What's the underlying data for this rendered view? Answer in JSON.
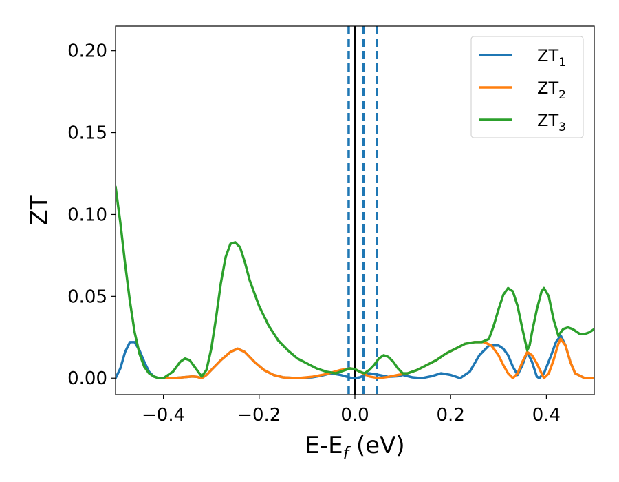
{
  "chart_data": {
    "type": "line",
    "xlabel": {
      "main": "E-E",
      "sub": "f",
      "unit": " (eV)"
    },
    "ylabel": "ZT",
    "xlim": [
      -0.5,
      0.5
    ],
    "ylim": [
      -0.01,
      0.215
    ],
    "x_ticks": [
      -0.4,
      -0.2,
      0.0,
      0.2,
      0.4
    ],
    "x_tick_labels": [
      "−0.4",
      "−0.2",
      "0.0",
      "0.2",
      "0.4"
    ],
    "y_ticks": [
      0.0,
      0.05,
      0.1,
      0.15,
      0.2
    ],
    "y_tick_labels": [
      "0.00",
      "0.05",
      "0.10",
      "0.15",
      "0.20"
    ],
    "legend_position": "top-right",
    "vertical_lines": [
      {
        "x": -0.013,
        "style": "dashed",
        "color": "#1f77b4"
      },
      {
        "x": 0.0,
        "style": "solid",
        "color": "#000000"
      },
      {
        "x": 0.018,
        "style": "dashed",
        "color": "#1f77b4"
      },
      {
        "x": 0.046,
        "style": "dashed",
        "color": "#1f77b4"
      }
    ],
    "series": [
      {
        "name": "ZT",
        "name_sub": "1",
        "color": "#1f77b4",
        "points": [
          [
            -0.5,
            0.0
          ],
          [
            -0.49,
            0.006
          ],
          [
            -0.48,
            0.016
          ],
          [
            -0.47,
            0.022
          ],
          [
            -0.46,
            0.022
          ],
          [
            -0.45,
            0.017
          ],
          [
            -0.44,
            0.01
          ],
          [
            -0.43,
            0.004
          ],
          [
            -0.42,
            0.001
          ],
          [
            -0.41,
            0.0
          ],
          [
            -0.4,
            0.0
          ],
          [
            -0.38,
            0.0
          ],
          [
            -0.36,
            0.0005
          ],
          [
            -0.34,
            0.001
          ],
          [
            -0.33,
            0.0008
          ],
          [
            -0.32,
            0.0
          ],
          [
            -0.31,
            0.002
          ],
          [
            -0.3,
            0.005
          ],
          [
            -0.28,
            0.011
          ],
          [
            -0.26,
            0.016
          ],
          [
            -0.245,
            0.018
          ],
          [
            -0.23,
            0.016
          ],
          [
            -0.21,
            0.01
          ],
          [
            -0.19,
            0.005
          ],
          [
            -0.17,
            0.002
          ],
          [
            -0.15,
            0.0005
          ],
          [
            -0.12,
            0.0
          ],
          [
            -0.09,
            0.0005
          ],
          [
            -0.07,
            0.0015
          ],
          [
            -0.05,
            0.003
          ],
          [
            -0.03,
            0.002
          ],
          [
            -0.01,
            0.0003
          ],
          [
            0.0,
            0.0
          ],
          [
            0.01,
            0.0005
          ],
          [
            0.03,
            0.003
          ],
          [
            0.05,
            0.002
          ],
          [
            0.07,
            0.0008
          ],
          [
            0.09,
            0.0012
          ],
          [
            0.1,
            0.002
          ],
          [
            0.12,
            0.0005
          ],
          [
            0.14,
            0.0
          ],
          [
            0.16,
            0.0012
          ],
          [
            0.18,
            0.003
          ],
          [
            0.2,
            0.002
          ],
          [
            0.22,
            0.0
          ],
          [
            0.24,
            0.004
          ],
          [
            0.26,
            0.014
          ],
          [
            0.28,
            0.02
          ],
          [
            0.3,
            0.02
          ],
          [
            0.31,
            0.018
          ],
          [
            0.32,
            0.014
          ],
          [
            0.33,
            0.007
          ],
          [
            0.34,
            0.002
          ],
          [
            0.35,
            0.008
          ],
          [
            0.36,
            0.016
          ],
          [
            0.37,
            0.01
          ],
          [
            0.38,
            0.001
          ],
          [
            0.385,
            0.0
          ],
          [
            0.395,
            0.003
          ],
          [
            0.41,
            0.014
          ],
          [
            0.42,
            0.022
          ],
          [
            0.43,
            0.026
          ],
          [
            0.44,
            0.02
          ],
          [
            0.45,
            0.01
          ],
          [
            0.46,
            0.003
          ],
          [
            0.48,
            0.0
          ],
          [
            0.5,
            0.0
          ]
        ]
      },
      {
        "name": "ZT",
        "name_sub": "2",
        "color": "#ff7f0e",
        "points": [
          [
            -0.4,
            0.0
          ],
          [
            -0.38,
            0.0
          ],
          [
            -0.36,
            0.0005
          ],
          [
            -0.34,
            0.001
          ],
          [
            -0.33,
            0.0008
          ],
          [
            -0.32,
            0.0
          ],
          [
            -0.31,
            0.002
          ],
          [
            -0.3,
            0.005
          ],
          [
            -0.28,
            0.011
          ],
          [
            -0.26,
            0.016
          ],
          [
            -0.245,
            0.018
          ],
          [
            -0.23,
            0.016
          ],
          [
            -0.21,
            0.01
          ],
          [
            -0.19,
            0.005
          ],
          [
            -0.17,
            0.002
          ],
          [
            -0.15,
            0.0005
          ],
          [
            -0.12,
            0.0
          ],
          [
            -0.09,
            0.0008
          ],
          [
            -0.06,
            0.0025
          ],
          [
            -0.03,
            0.005
          ],
          [
            -0.01,
            0.006
          ],
          [
            0.0,
            0.0055
          ],
          [
            0.01,
            0.004
          ],
          [
            0.03,
            0.001
          ],
          [
            0.05,
            0.0
          ],
          [
            0.07,
            0.0008
          ],
          [
            0.09,
            0.002
          ],
          [
            0.11,
            0.003
          ],
          [
            0.13,
            0.005
          ],
          [
            0.15,
            0.008
          ],
          [
            0.17,
            0.011
          ],
          [
            0.19,
            0.015
          ],
          [
            0.21,
            0.018
          ],
          [
            0.23,
            0.021
          ],
          [
            0.25,
            0.022
          ],
          [
            0.27,
            0.022
          ],
          [
            0.285,
            0.02
          ],
          [
            0.3,
            0.014
          ],
          [
            0.31,
            0.008
          ],
          [
            0.32,
            0.003
          ],
          [
            0.33,
            0.0
          ],
          [
            0.34,
            0.003
          ],
          [
            0.35,
            0.01
          ],
          [
            0.36,
            0.016
          ],
          [
            0.37,
            0.014
          ],
          [
            0.38,
            0.009
          ],
          [
            0.39,
            0.003
          ],
          [
            0.395,
            0.0
          ],
          [
            0.405,
            0.003
          ],
          [
            0.415,
            0.011
          ],
          [
            0.425,
            0.021
          ],
          [
            0.43,
            0.024
          ],
          [
            0.44,
            0.02
          ],
          [
            0.45,
            0.01
          ],
          [
            0.46,
            0.003
          ],
          [
            0.48,
            0.0
          ],
          [
            0.5,
            0.0
          ]
        ]
      },
      {
        "name": "ZT",
        "name_sub": "3",
        "color": "#2ca02c",
        "points": [
          [
            -0.5,
            0.117
          ],
          [
            -0.49,
            0.095
          ],
          [
            -0.48,
            0.07
          ],
          [
            -0.47,
            0.047
          ],
          [
            -0.46,
            0.028
          ],
          [
            -0.45,
            0.015
          ],
          [
            -0.44,
            0.007
          ],
          [
            -0.43,
            0.003
          ],
          [
            -0.42,
            0.001
          ],
          [
            -0.41,
            0.0
          ],
          [
            -0.4,
            0.0
          ],
          [
            -0.38,
            0.004
          ],
          [
            -0.365,
            0.01
          ],
          [
            -0.355,
            0.012
          ],
          [
            -0.345,
            0.011
          ],
          [
            -0.33,
            0.005
          ],
          [
            -0.32,
            0.001
          ],
          [
            -0.31,
            0.005
          ],
          [
            -0.3,
            0.018
          ],
          [
            -0.29,
            0.037
          ],
          [
            -0.28,
            0.058
          ],
          [
            -0.27,
            0.074
          ],
          [
            -0.26,
            0.082
          ],
          [
            -0.25,
            0.083
          ],
          [
            -0.24,
            0.08
          ],
          [
            -0.23,
            0.071
          ],
          [
            -0.22,
            0.06
          ],
          [
            -0.2,
            0.044
          ],
          [
            -0.18,
            0.032
          ],
          [
            -0.16,
            0.023
          ],
          [
            -0.14,
            0.017
          ],
          [
            -0.12,
            0.012
          ],
          [
            -0.1,
            0.009
          ],
          [
            -0.08,
            0.006
          ],
          [
            -0.06,
            0.004
          ],
          [
            -0.04,
            0.003
          ],
          [
            -0.02,
            0.005
          ],
          [
            -0.01,
            0.006
          ],
          [
            0.0,
            0.0055
          ],
          [
            0.01,
            0.004
          ],
          [
            0.02,
            0.003
          ],
          [
            0.03,
            0.005
          ],
          [
            0.04,
            0.008
          ],
          [
            0.05,
            0.012
          ],
          [
            0.06,
            0.014
          ],
          [
            0.07,
            0.013
          ],
          [
            0.08,
            0.01
          ],
          [
            0.09,
            0.006
          ],
          [
            0.1,
            0.003
          ],
          [
            0.11,
            0.003
          ],
          [
            0.13,
            0.005
          ],
          [
            0.15,
            0.008
          ],
          [
            0.17,
            0.011
          ],
          [
            0.19,
            0.015
          ],
          [
            0.21,
            0.018
          ],
          [
            0.23,
            0.021
          ],
          [
            0.25,
            0.022
          ],
          [
            0.265,
            0.022
          ],
          [
            0.28,
            0.024
          ],
          [
            0.29,
            0.032
          ],
          [
            0.3,
            0.042
          ],
          [
            0.31,
            0.051
          ],
          [
            0.32,
            0.055
          ],
          [
            0.33,
            0.053
          ],
          [
            0.34,
            0.044
          ],
          [
            0.35,
            0.03
          ],
          [
            0.36,
            0.017
          ],
          [
            0.365,
            0.02
          ],
          [
            0.37,
            0.028
          ],
          [
            0.38,
            0.042
          ],
          [
            0.39,
            0.053
          ],
          [
            0.395,
            0.055
          ],
          [
            0.405,
            0.05
          ],
          [
            0.415,
            0.036
          ],
          [
            0.425,
            0.026
          ],
          [
            0.435,
            0.03
          ],
          [
            0.445,
            0.031
          ],
          [
            0.455,
            0.03
          ],
          [
            0.47,
            0.027
          ],
          [
            0.48,
            0.027
          ],
          [
            0.49,
            0.028
          ],
          [
            0.5,
            0.03
          ]
        ]
      }
    ]
  }
}
